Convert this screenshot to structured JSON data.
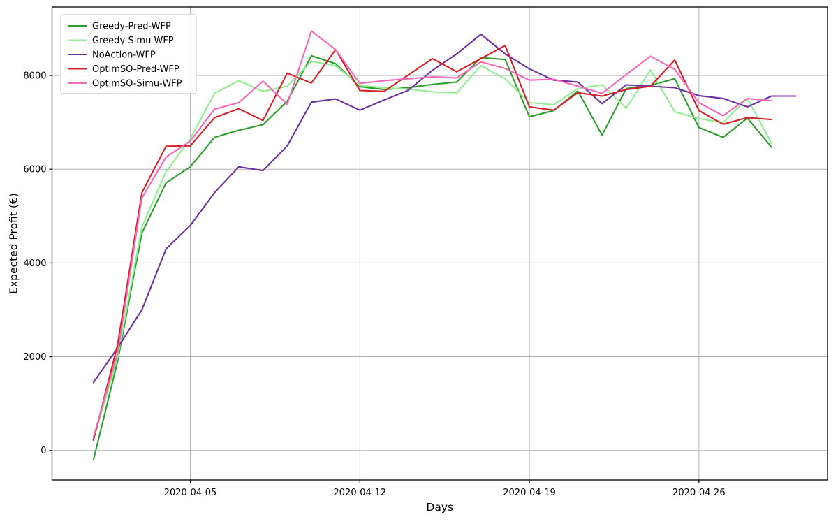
{
  "figure": {
    "background": "#ffffff",
    "plot_background": "#ffffff",
    "grid_color": "#b0b0b0",
    "spine_color": "#000000",
    "tick_color": "#000000",
    "legend": {
      "position": "upper-left",
      "border_color": "#cccccc",
      "fill": "#ffffff"
    }
  },
  "chart_data": {
    "type": "line",
    "title": "",
    "xlabel": "Days",
    "ylabel": "Expected Profit (€)",
    "grid": true,
    "legend_position": "upper-left",
    "x_tick_labels": [
      "2020-04-05",
      "2020-04-12",
      "2020-04-19",
      "2020-04-26"
    ],
    "y_ticks": [
      0,
      2000,
      4000,
      6000,
      8000
    ],
    "ylim": [
      -630,
      9461
    ],
    "xlim_day_offsets": [
      -1.71,
      30.31
    ],
    "x": [
      "2020-04-01",
      "2020-04-02",
      "2020-04-03",
      "2020-04-04",
      "2020-04-05",
      "2020-04-06",
      "2020-04-07",
      "2020-04-08",
      "2020-04-09",
      "2020-04-10",
      "2020-04-11",
      "2020-04-12",
      "2020-04-13",
      "2020-04-14",
      "2020-04-15",
      "2020-04-16",
      "2020-04-17",
      "2020-04-18",
      "2020-04-19",
      "2020-04-20",
      "2020-04-21",
      "2020-04-22",
      "2020-04-23",
      "2020-04-24",
      "2020-04-25",
      "2020-04-26",
      "2020-04-27",
      "2020-04-28",
      "2020-04-29",
      "2020-04-30"
    ],
    "series": [
      {
        "name": "Greedy-Pred-WFP",
        "color": "#2ca02c",
        "values": [
          -200,
          1910,
          4640,
          5710,
          6050,
          6680,
          6830,
          6950,
          7450,
          8420,
          8250,
          7760,
          7700,
          7740,
          7810,
          7860,
          8380,
          8340,
          7120,
          7250,
          7670,
          6730,
          7720,
          7790,
          7930,
          6890,
          6680,
          7090,
          6470,
          null
        ]
      },
      {
        "name": "Greedy-Simu-WFP",
        "color": "#90ee90",
        "values": [
          230,
          1990,
          4770,
          5950,
          6650,
          7620,
          7890,
          7660,
          7770,
          8300,
          8210,
          7790,
          7740,
          7710,
          7650,
          7630,
          8210,
          7930,
          7420,
          7375,
          7720,
          7800,
          7300,
          8120,
          7225,
          7080,
          6990,
          7510,
          6550,
          null
        ]
      },
      {
        "name": "NoAction-WFP",
        "color": "#7030a0",
        "values": [
          1450,
          2190,
          3000,
          4300,
          4800,
          5500,
          6050,
          5970,
          6500,
          7430,
          7500,
          7260,
          7475,
          7685,
          8110,
          8460,
          8880,
          8460,
          8140,
          7900,
          7860,
          7400,
          7800,
          7770,
          7740,
          7570,
          7510,
          7330,
          7560,
          7560
        ]
      },
      {
        "name": "OptimSO-Pred-WFP",
        "color": "#d62028",
        "values": [
          220,
          2260,
          5500,
          6490,
          6500,
          7100,
          7290,
          7040,
          8050,
          7840,
          8550,
          7680,
          7660,
          8010,
          8360,
          8080,
          8360,
          8640,
          7330,
          7260,
          7630,
          7560,
          7700,
          7770,
          8330,
          7250,
          6960,
          7100,
          7060,
          null
        ]
      },
      {
        "name": "OptimSO-Simu-WFP",
        "color": "#f468b8",
        "values": [
          280,
          2090,
          5390,
          6260,
          6600,
          7280,
          7420,
          7880,
          7385,
          8950,
          8550,
          7830,
          7890,
          7930,
          7970,
          7950,
          8290,
          8150,
          7900,
          7920,
          7770,
          7620,
          8020,
          8410,
          8130,
          7420,
          7140,
          7510,
          7460,
          null
        ]
      }
    ]
  }
}
